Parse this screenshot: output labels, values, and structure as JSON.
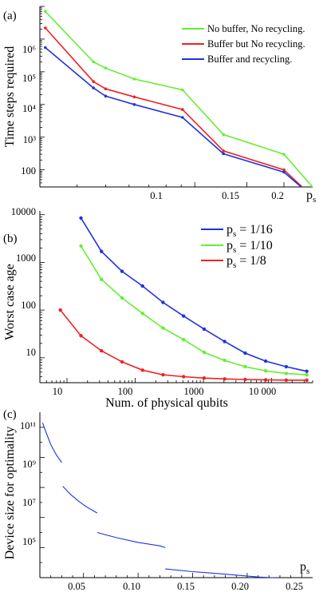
{
  "chart_data": [
    {
      "panel_label": "(a)",
      "type": "line",
      "ylabel": "Time steps required",
      "xlabel_main": "p",
      "xlabel_sub": "s",
      "xscale": "log",
      "yscale": "log",
      "xlim": [
        0.03,
        0.25
      ],
      "ylim": [
        30,
        10000000
      ],
      "x_ticks": [
        0.1,
        0.15,
        0.2
      ],
      "x_tick_labels": [
        "0.1",
        "0.15",
        "0.2"
      ],
      "y_ticks": [
        100,
        1000,
        10000,
        100000,
        1000000
      ],
      "y_tick_labels": [
        "100",
        "10³",
        "10⁴",
        "10⁵",
        "10⁶"
      ],
      "legend_position": "top-right",
      "series": [
        {
          "name": "No buffer, No recycling.",
          "color": "#66ee33",
          "x": [
            0.0313,
            0.0455,
            0.05,
            0.0625,
            0.0909,
            0.125,
            0.2,
            0.25
          ],
          "y": [
            7000000,
            200000,
            130000,
            60000,
            28000,
            1200,
            300,
            30
          ]
        },
        {
          "name": "Buffer but No recycling.",
          "color": "#ee2222",
          "x": [
            0.0313,
            0.0455,
            0.05,
            0.0625,
            0.0909,
            0.125,
            0.2,
            0.25
          ],
          "y": [
            2200000,
            50000,
            30000,
            17000,
            7000,
            380,
            100,
            15
          ]
        },
        {
          "name": "Buffer and recycling.",
          "color": "#2233dd",
          "x": [
            0.0313,
            0.0455,
            0.05,
            0.0625,
            0.0909,
            0.125,
            0.2,
            0.25
          ],
          "y": [
            550000,
            32000,
            18000,
            10000,
            4000,
            310,
            85,
            15
          ]
        }
      ]
    },
    {
      "panel_label": "(b)",
      "type": "line",
      "xlabel": "Num. of physical qubits",
      "ylabel": "Worst case age",
      "xscale": "log",
      "yscale": "log",
      "xlim": [
        4,
        40000
      ],
      "ylim": [
        3,
        12000
      ],
      "x_ticks": [
        10,
        100,
        1000,
        10000
      ],
      "x_tick_labels": [
        "10",
        "100",
        "1000",
        "10 000"
      ],
      "y_ticks": [
        10,
        100,
        1000,
        10000
      ],
      "y_tick_labels": [
        "10",
        "100",
        "1000",
        "10000"
      ],
      "legend_position": "top-right",
      "series": [
        {
          "name_main": "p",
          "name_sub": "s",
          "name_rest": " = 1/16",
          "color": "#2233dd",
          "x": [
            16,
            32,
            64,
            128,
            256,
            512,
            1024,
            2048,
            4096,
            8192,
            16384,
            32768
          ],
          "y": [
            8500,
            1700,
            650,
            320,
            145,
            75,
            40,
            22,
            12.5,
            8.5,
            6.5,
            5.2
          ]
        },
        {
          "name_main": "p",
          "name_sub": "s",
          "name_rest": " = 1/10",
          "color": "#66ee33",
          "x": [
            16,
            32,
            64,
            128,
            256,
            512,
            1024,
            2048,
            4096,
            8192,
            16384,
            32768
          ],
          "y": [
            2200,
            440,
            180,
            85,
            42,
            24,
            13,
            8.8,
            6.5,
            5.3,
            4.7,
            4.4
          ]
        },
        {
          "name_main": "p",
          "name_sub": "s",
          "name_rest": " = 1/8",
          "color": "#ee2222",
          "x": [
            8,
            16,
            32,
            64,
            128,
            256,
            512,
            1024,
            2048,
            4096,
            8192,
            16384,
            32768
          ],
          "y": [
            100,
            29,
            14,
            8.2,
            5.5,
            4.4,
            4.0,
            3.75,
            3.6,
            3.5,
            3.45,
            3.4,
            3.4
          ]
        }
      ]
    },
    {
      "panel_label": "(c)",
      "type": "line",
      "ylabel": "Device size for optimality",
      "xlabel_main": "p",
      "xlabel_sub": "s",
      "yscale": "log",
      "xlim": [
        0.01,
        0.26
      ],
      "ylim": [
        1000,
        100000000000000
      ],
      "x_ticks": [
        0.05,
        0.1,
        0.15,
        0.2,
        0.25
      ],
      "x_tick_labels": [
        "0.05",
        "0.10",
        "0.15",
        "0.20",
        "0.25"
      ],
      "y_ticks": [
        100000,
        10000000,
        1000000000,
        100000000000
      ],
      "y_tick_labels": [
        "10⁵",
        "10⁷",
        "10⁹",
        "10¹¹"
      ],
      "series": [
        {
          "color": "#2233dd",
          "segments": [
            {
              "x": [
                0.0125,
                0.016,
                0.02,
                0.025,
                0.03
              ],
              "y": [
                20000000000000,
                4000000000000,
                700000000000,
                150000000000,
                45000000000
              ]
            },
            {
              "x": [
                0.031,
                0.038,
                0.045,
                0.052,
                0.0625
              ],
              "y": [
                1200000000,
                350000000,
                130000000,
                55000000,
                20000000
              ]
            },
            {
              "x": [
                0.0625,
                0.08,
                0.1,
                0.12,
                0.125
              ],
              "y": [
                1000000,
                460000,
                220000,
                130000,
                100000
              ]
            },
            {
              "x": [
                0.125,
                0.15,
                0.18,
                0.21,
                0.25
              ],
              "y": [
                3800,
                2500,
                1700,
                1100,
                780
              ]
            }
          ]
        }
      ]
    }
  ]
}
